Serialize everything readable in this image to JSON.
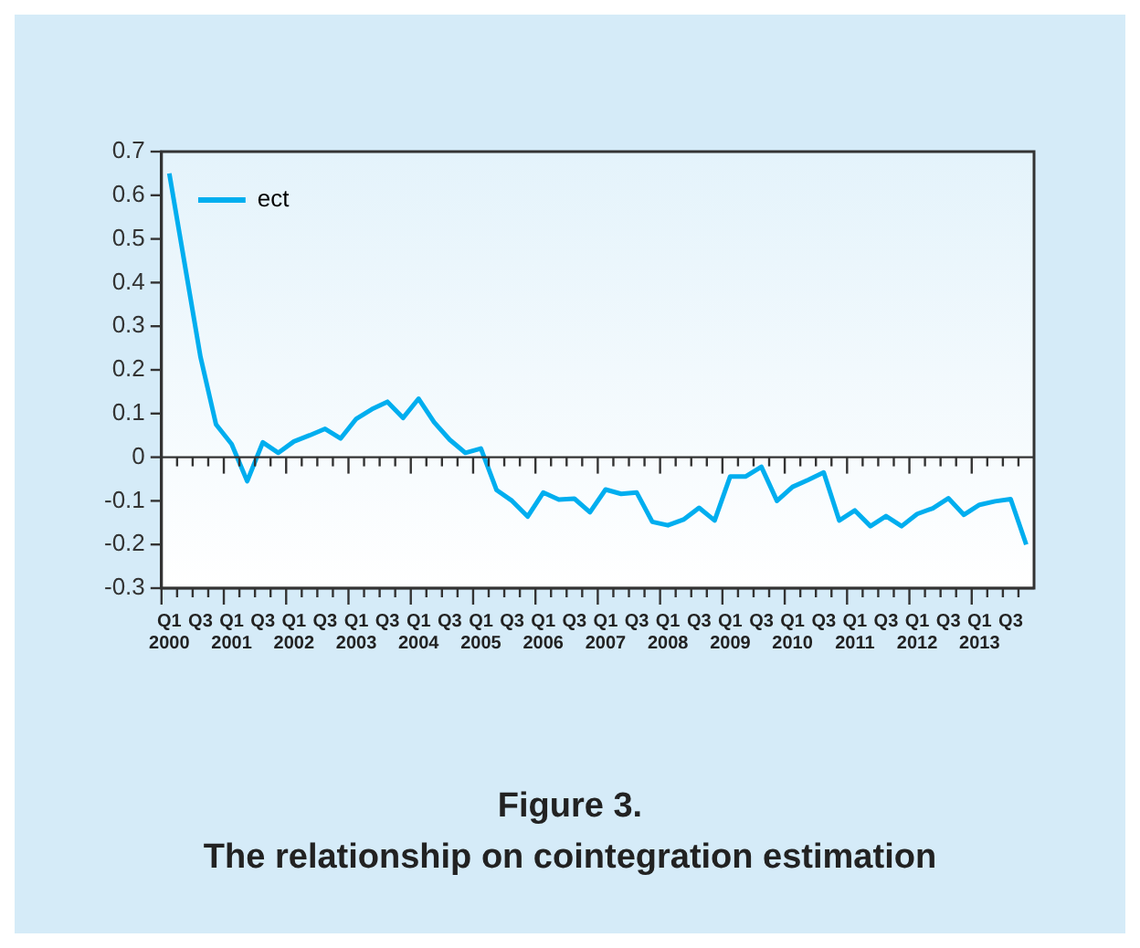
{
  "chart_data": {
    "type": "line",
    "title": "Figure 3.",
    "subtitle": "The relationship on cointegration estimation",
    "categories": [
      "Q1 2000",
      null,
      "Q3",
      null,
      "Q1 2001",
      null,
      "Q3",
      null,
      "Q1 2002",
      null,
      "Q3",
      null,
      "Q1 2003",
      null,
      "Q3",
      null,
      "Q1 2004",
      null,
      "Q3",
      null,
      "Q1 2005",
      null,
      "Q3",
      null,
      "Q1 2006",
      null,
      "Q3",
      null,
      "Q1 2007",
      null,
      "Q3",
      null,
      "Q1 2008",
      null,
      "Q3",
      null,
      "Q1 2009",
      null,
      "Q3",
      null,
      "Q1 2010",
      null,
      "Q3",
      null,
      "Q1 2011",
      null,
      "Q3",
      null,
      "Q1 2012",
      null,
      "Q3",
      null,
      "Q1 2013",
      null,
      "Q3",
      null
    ],
    "ref_lines": [
      {
        "axis": "y",
        "value": 0,
        "color": "#333333"
      }
    ],
    "series": [
      {
        "name": "ect",
        "color": "#00aeef",
        "values": [
          0.65,
          0.44,
          0.23,
          0.075,
          0.03,
          -0.055,
          0.034,
          0.01,
          0.036,
          0.05,
          0.065,
          0.043,
          0.088,
          0.11,
          0.127,
          0.09,
          0.134,
          0.08,
          0.04,
          0.01,
          0.02,
          -0.075,
          -0.1,
          -0.136,
          -0.081,
          -0.097,
          -0.095,
          -0.126,
          -0.074,
          -0.084,
          -0.081,
          -0.148,
          -0.156,
          -0.143,
          -0.116,
          -0.145,
          -0.044,
          -0.044,
          -0.022,
          -0.1,
          -0.068,
          -0.052,
          -0.035,
          -0.145,
          -0.122,
          -0.158,
          -0.135,
          -0.158,
          -0.13,
          -0.117,
          -0.094,
          -0.132,
          -0.109,
          -0.101,
          -0.096,
          -0.2
        ]
      }
    ],
    "ylim": [
      -0.3,
      0.7
    ],
    "yticks": [
      -0.3,
      -0.2,
      -0.1,
      0,
      0.1,
      0.2,
      0.3,
      0.4,
      0.5,
      0.6,
      0.7
    ],
    "grid": false,
    "legend": "top left",
    "marker": "none",
    "line_style": "solid"
  }
}
